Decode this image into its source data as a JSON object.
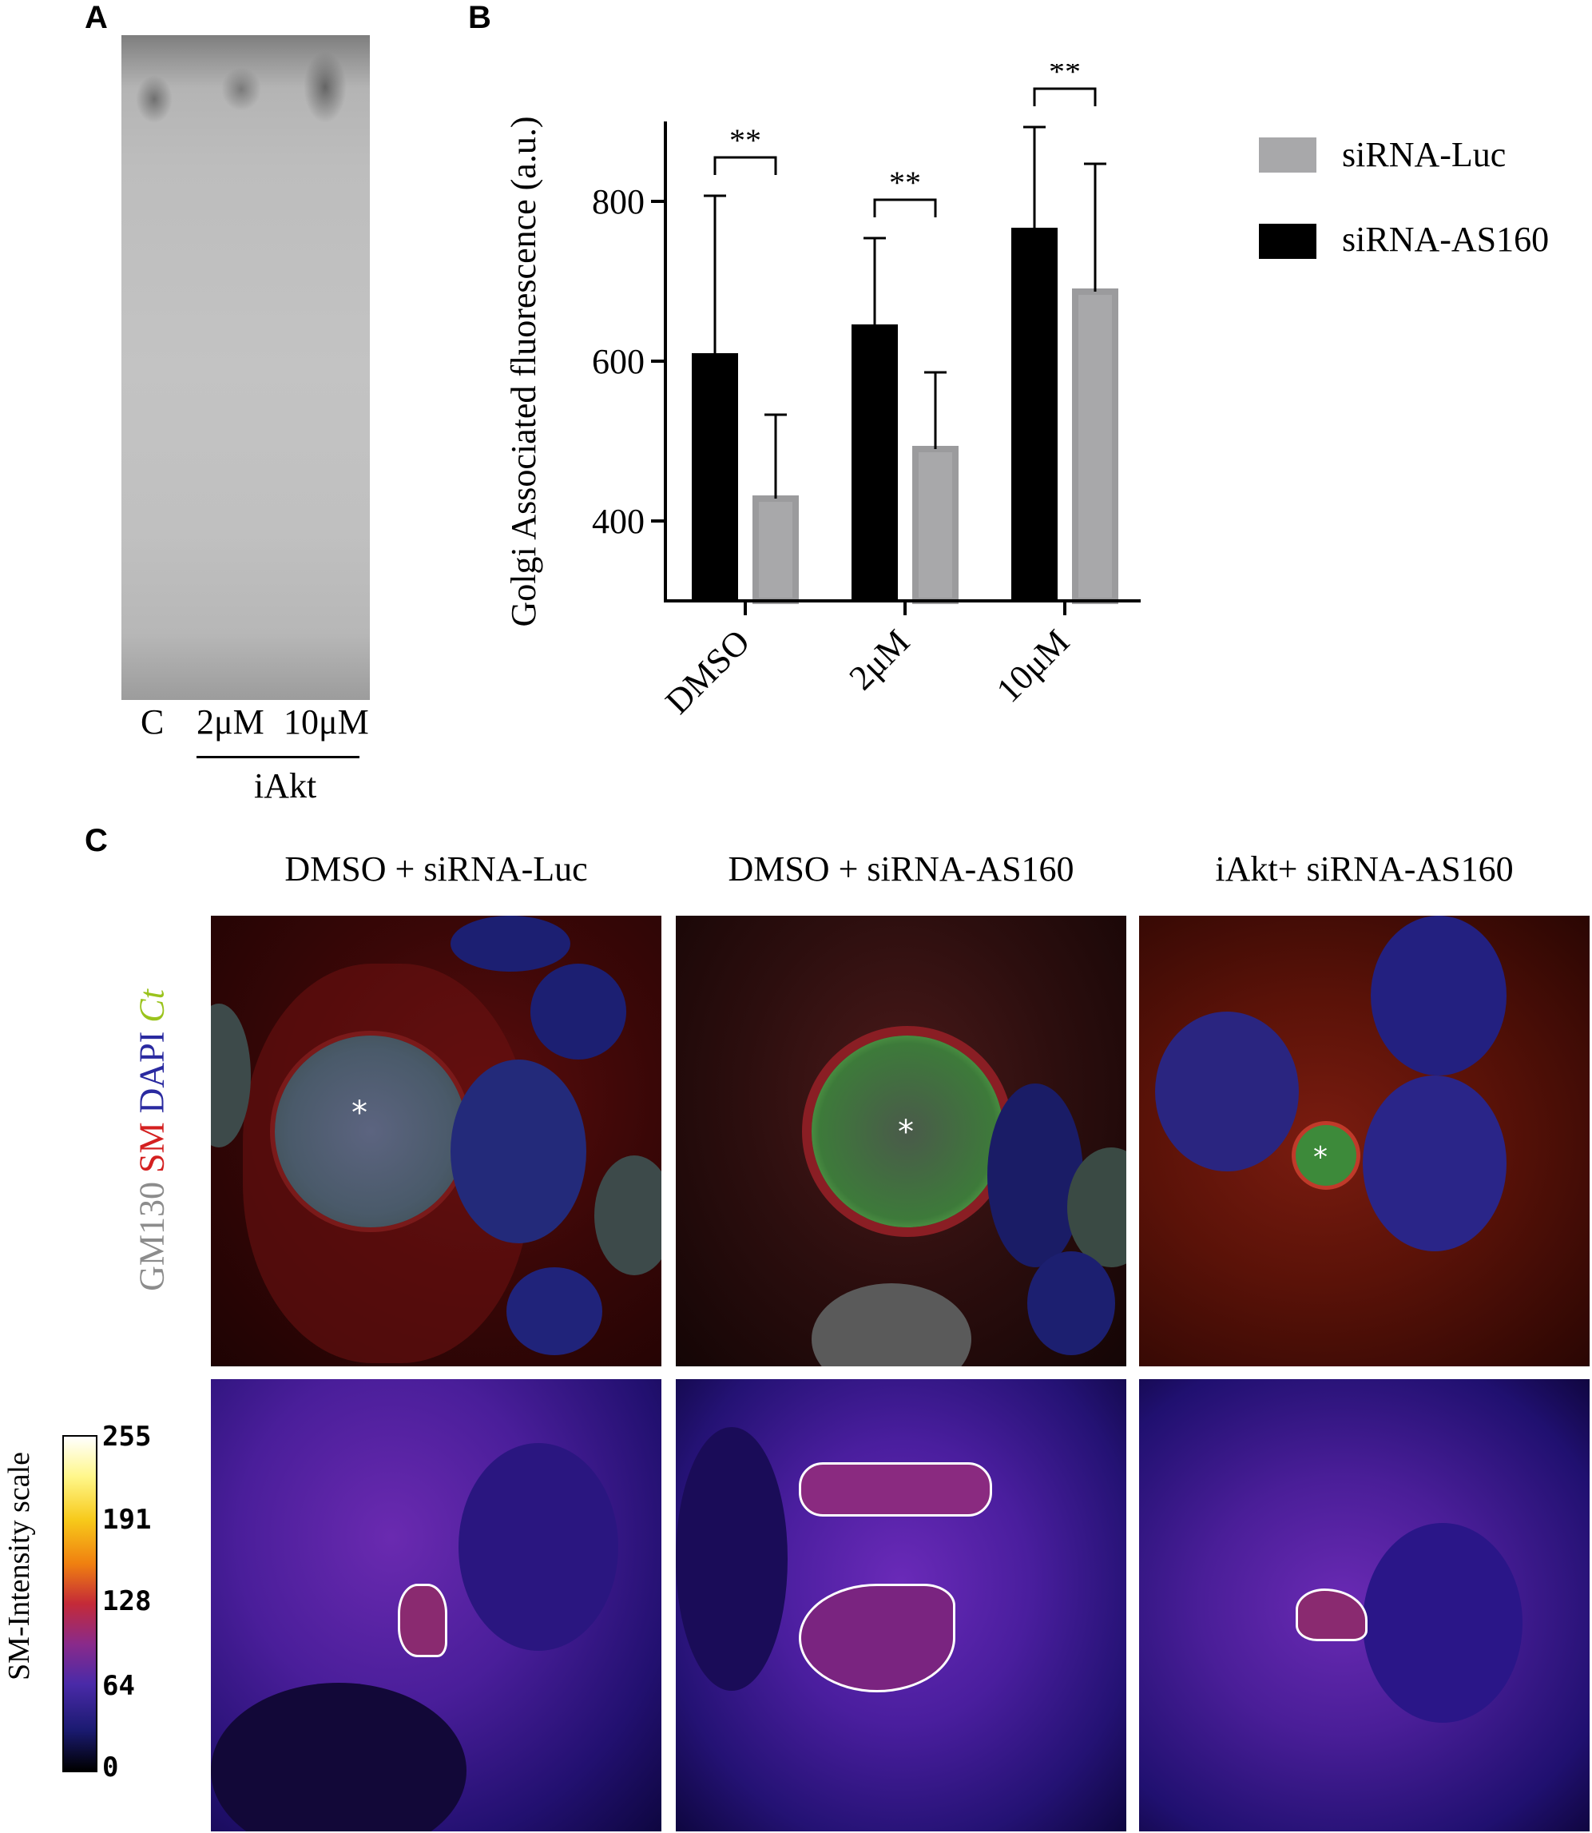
{
  "panel_a": {
    "letter": "A",
    "lanes": [
      "C",
      "2μM",
      "10μM"
    ],
    "group_label": "iAkt"
  },
  "panel_b": {
    "letter": "B",
    "ylabel": "Golgi Associated fluorescence (a.u.)",
    "legend": [
      {
        "label": "siRNA-Luc",
        "color": "#a8a8aa"
      },
      {
        "label": "siRNA-AS160",
        "color": "#000000"
      }
    ]
  },
  "chart_data": {
    "type": "bar",
    "categories": [
      "DMSO",
      "2μM",
      "10μM"
    ],
    "series": [
      {
        "name": "siRNA-AS160",
        "color": "#000000",
        "values": [
          610,
          646,
          767
        ],
        "error": [
          197,
          108,
          126
        ]
      },
      {
        "name": "siRNA-Luc",
        "color": "#a8a8aa",
        "values": [
          428,
          490,
          687
        ],
        "error": [
          105,
          96,
          160
        ]
      }
    ],
    "ylim": [
      300,
      900
    ],
    "yticks": [
      400,
      600,
      800
    ],
    "significance": [
      "**",
      "**",
      "**"
    ],
    "legend_position": "right"
  },
  "panel_c": {
    "letter": "C",
    "columns": [
      "DMSO + siRNA-Luc",
      "DMSO + siRNA-AS160",
      "iAkt+ siRNA-AS160"
    ],
    "channel_label": {
      "gm130": "GM130",
      "sm": "SM",
      "dapi": "DAPI",
      "ct": "Ct"
    },
    "asterisk": "*",
    "scale_label": "SM-Intensity scale",
    "scale_ticks": [
      "255",
      "191",
      "128",
      "64",
      "0"
    ],
    "colors": {
      "gm130": "#8c8c8c",
      "sm": "#d42020",
      "dapi": "#2a2aa0",
      "ct": "#9ac31c"
    }
  }
}
